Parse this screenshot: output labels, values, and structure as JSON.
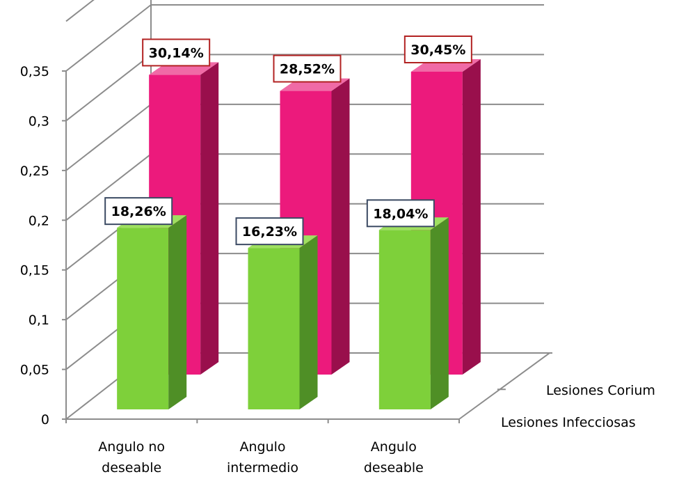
{
  "chart_data": {
    "type": "bar",
    "categories": [
      "Angulo no deseable",
      "Angulo intermedio",
      "Angulo deseable"
    ],
    "category_lines": [
      [
        "Angulo no",
        "deseable"
      ],
      [
        "Angulo",
        "intermedio"
      ],
      [
        "Angulo",
        "deseable"
      ]
    ],
    "series": [
      {
        "name": "Lesiones Infecciosas",
        "values": [
          0.1826,
          0.1623,
          0.1804
        ],
        "labels": [
          "18,26%",
          "16,23%",
          "18,04%"
        ]
      },
      {
        "name": "Lesiones Corium",
        "values": [
          0.3014,
          0.2852,
          0.3045
        ],
        "labels": [
          "30,14%",
          "28,52%",
          "30,45%"
        ]
      }
    ],
    "y_ticks": [
      "0",
      "0,05",
      "0,1",
      "0,15",
      "0,2",
      "0,25",
      "0,3",
      "0,35"
    ],
    "ylim": [
      0,
      0.35
    ],
    "grid": true,
    "depth_axis_labels": [
      "Lesiones Infecciosas",
      "Lesiones Corium"
    ],
    "colors": {
      "infecciosas_front": "#7ed03a",
      "infecciosas_side": "#4f8f26",
      "infecciosas_top": "#9fe060",
      "corium_front": "#ec1a7c",
      "corium_side": "#990f4c",
      "corium_top": "#f06aa6",
      "infecciosas_label_border": "#3b4a63",
      "corium_label_border": "#b22222",
      "grid": "#8c8c8c",
      "text": "#000000"
    }
  }
}
